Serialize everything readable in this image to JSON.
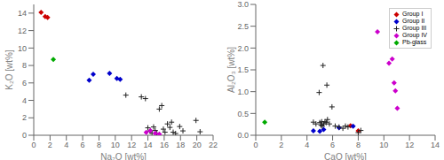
{
  "chart_data": [
    {
      "type": "scatter",
      "xlabel": "Na₂O [wt%]",
      "ylabel": "K₂O [wt%]",
      "xlim": [
        0,
        22
      ],
      "ylim": [
        0,
        15
      ],
      "xticks": [
        0,
        2,
        4,
        6,
        8,
        10,
        12,
        14,
        16,
        18,
        20,
        22
      ],
      "yticks": [
        0,
        2,
        4,
        6,
        8,
        10,
        12,
        14
      ],
      "series": [
        {
          "color": "#cc0000",
          "marker": "diamond",
          "x": [
            0.9,
            1.4,
            1.7
          ],
          "values": [
            14.1,
            13.6,
            13.5
          ]
        },
        {
          "color": "#0000cc",
          "marker": "diamond",
          "x": [
            6.8,
            7.3,
            9.3,
            10.2,
            10.6
          ],
          "values": [
            6.3,
            7.0,
            7.1,
            6.5,
            6.4
          ]
        },
        {
          "color": "#222222",
          "marker": "plus",
          "x": [
            11.3,
            13.2,
            13.7,
            14.0,
            14.3,
            14.5,
            14.7,
            14.9,
            15.1,
            15.4,
            15.7,
            15.9,
            16.1,
            16.4,
            16.7,
            16.9,
            17.1,
            17.4,
            17.9,
            18.3,
            19.9,
            20.4
          ],
          "values": [
            4.6,
            4.4,
            4.2,
            0.85,
            0.45,
            0.25,
            0.95,
            0.55,
            0.2,
            3.0,
            3.4,
            0.7,
            0.35,
            1.3,
            0.9,
            1.5,
            0.35,
            0.2,
            1.0,
            0.5,
            1.7,
            0.4
          ]
        },
        {
          "color": "#cc00cc",
          "marker": "diamond",
          "x": [
            13.8,
            14.3,
            14.9,
            15.4
          ],
          "values": [
            0.32,
            0.52,
            0.22,
            0.12
          ]
        },
        {
          "color": "#00aa00",
          "marker": "diamond",
          "x": [
            2.4
          ],
          "values": [
            8.7
          ]
        }
      ]
    },
    {
      "type": "scatter",
      "xlabel": "CaO [wt%]",
      "ylabel": "Al₂O₃ [wt%]",
      "xlim": [
        0,
        14
      ],
      "ylim": [
        0.0,
        3.0
      ],
      "xticks": [
        0,
        2,
        4,
        6,
        8,
        10,
        12,
        14
      ],
      "yticks": [
        {
          "value": 0,
          "label": "0.0"
        },
        0.5,
        {
          "value": 1,
          "label": "1.0"
        },
        1.5,
        {
          "value": 2,
          "label": "2.0"
        },
        2.5,
        {
          "value": 3,
          "label": "3.0"
        }
      ],
      "legend": "upper right",
      "series": [
        {
          "name": "Group I",
          "color": "#cc0000",
          "marker": "diamond",
          "x": [
            7.4,
            8.0
          ],
          "values": [
            0.22,
            0.1
          ]
        },
        {
          "name": "Group II",
          "color": "#0000cc",
          "marker": "diamond",
          "x": [
            4.5,
            5.0,
            5.3,
            6.5,
            7.6
          ],
          "values": [
            0.1,
            0.09,
            0.13,
            0.17,
            0.21
          ]
        },
        {
          "name": "Group III",
          "color": "#222222",
          "marker": "plus",
          "x": [
            4.5,
            4.7,
            5.0,
            5.1,
            5.15,
            5.2,
            5.3,
            5.4,
            5.5,
            5.6,
            5.75,
            4.95,
            5.25,
            5.55,
            5.95,
            6.2,
            6.5,
            6.8,
            7.0,
            7.2,
            8.0,
            8.2
          ],
          "values": [
            0.3,
            0.26,
            0.29,
            0.23,
            0.31,
            0.21,
            0.26,
            0.31,
            0.29,
            0.36,
            0.26,
            0.98,
            1.6,
            1.15,
            0.65,
            0.21,
            0.19,
            0.16,
            0.21,
            0.19,
            0.06,
            0.11
          ]
        },
        {
          "name": "Group IV",
          "color": "#cc00cc",
          "marker": "diamond",
          "x": [
            9.5,
            10.4,
            10.65,
            10.8,
            10.9,
            11.05
          ],
          "values": [
            2.37,
            1.65,
            1.75,
            1.2,
            1.02,
            0.62
          ]
        },
        {
          "name": "Pb-glass",
          "color": "#00aa00",
          "marker": "diamond",
          "x": [
            0.7
          ],
          "values": [
            0.3
          ]
        }
      ]
    }
  ]
}
